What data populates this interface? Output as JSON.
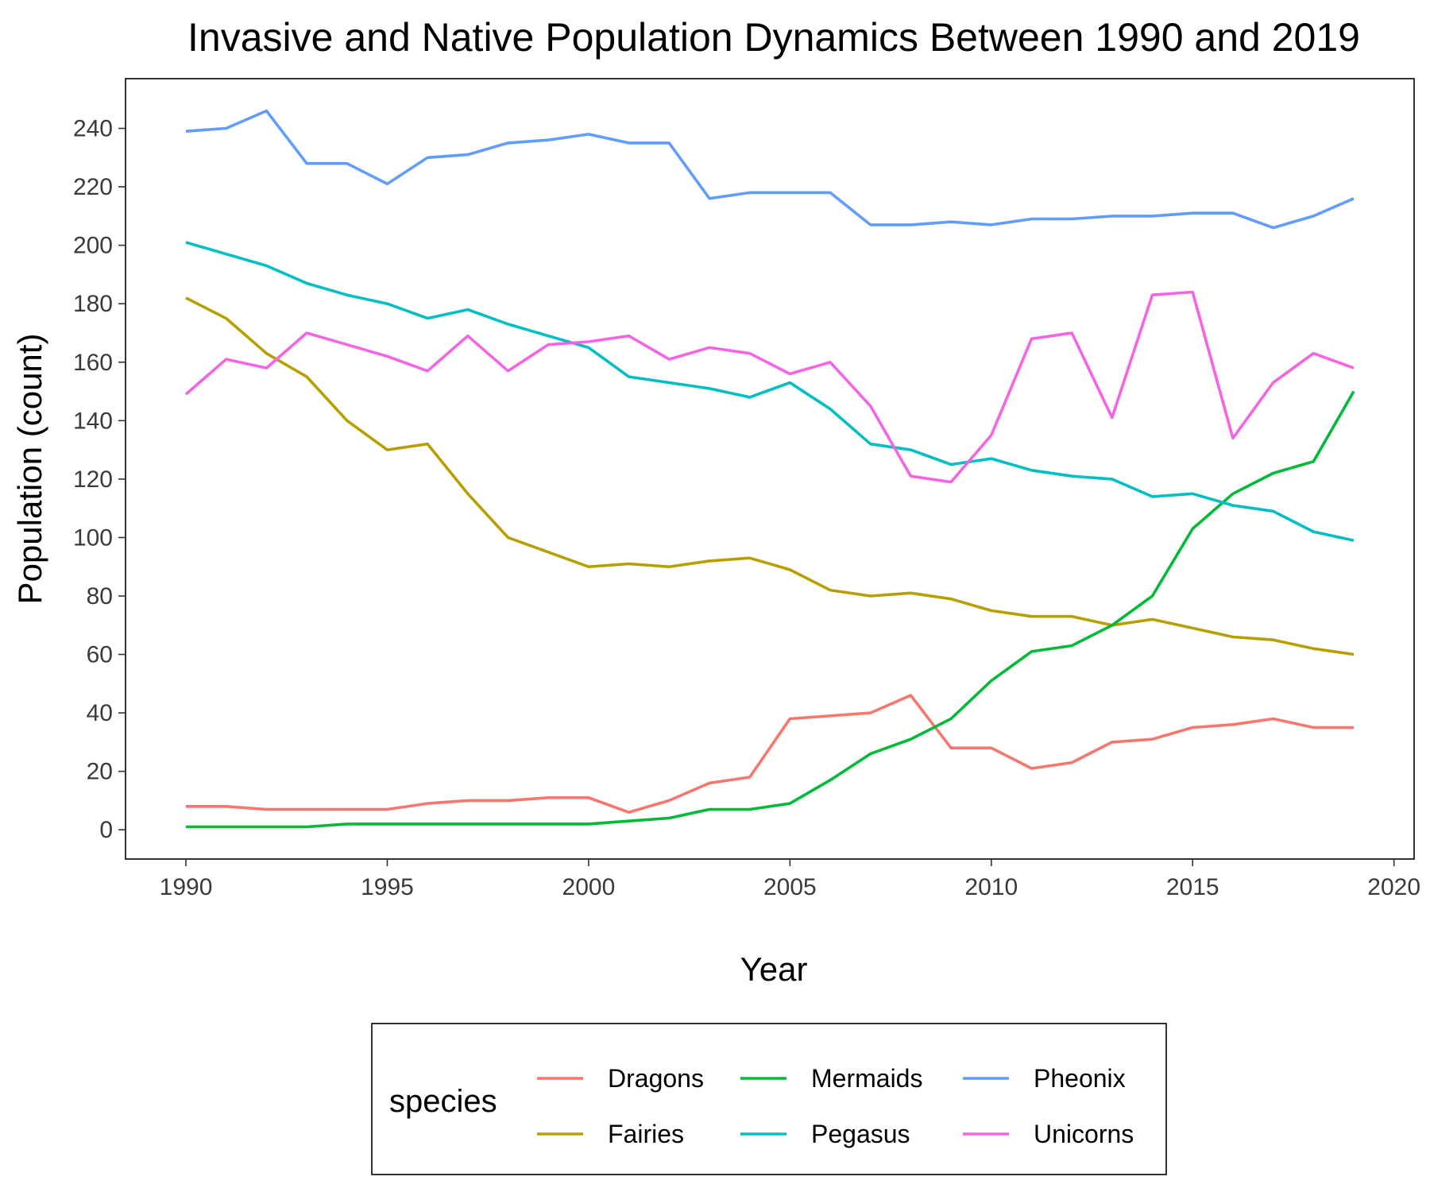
{
  "chart_data": {
    "type": "line",
    "title": "Invasive and Native Population Dynamics Between 1990 and 2019",
    "xlabel": "Year",
    "ylabel": "Population (count)",
    "xlim": [
      1988.5,
      2020.5
    ],
    "ylim": [
      -10,
      257
    ],
    "x_ticks": [
      1990,
      1995,
      2000,
      2005,
      2010,
      2015,
      2020
    ],
    "x_tick_labels": [
      "1990",
      "1995",
      "2000",
      "2005",
      "2010",
      "2015",
      "2020"
    ],
    "y_ticks": [
      0,
      20,
      40,
      60,
      80,
      100,
      120,
      140,
      160,
      180,
      200,
      220,
      240
    ],
    "y_tick_labels": [
      "0",
      "20",
      "40",
      "60",
      "80",
      "100",
      "120",
      "140",
      "160",
      "180",
      "200",
      "220",
      "240"
    ],
    "grid": false,
    "legend_title": "species",
    "legend_position": "bottom",
    "x": [
      1990,
      1991,
      1992,
      1993,
      1994,
      1995,
      1996,
      1997,
      1998,
      1999,
      2000,
      2001,
      2002,
      2003,
      2004,
      2005,
      2006,
      2007,
      2008,
      2009,
      2010,
      2011,
      2012,
      2013,
      2014,
      2015,
      2016,
      2017,
      2018,
      2019
    ],
    "series": [
      {
        "name": "Dragons",
        "color": "#F8766D",
        "values": [
          8,
          8,
          7,
          7,
          7,
          7,
          9,
          10,
          10,
          11,
          11,
          6,
          10,
          16,
          18,
          38,
          39,
          40,
          46,
          28,
          28,
          21,
          23,
          30,
          31,
          35,
          36,
          38,
          35,
          35
        ]
      },
      {
        "name": "Fairies",
        "color": "#B79F00",
        "values": [
          182,
          175,
          163,
          155,
          140,
          130,
          132,
          115,
          100,
          95,
          90,
          91,
          90,
          92,
          93,
          89,
          82,
          80,
          81,
          79,
          75,
          73,
          73,
          70,
          72,
          69,
          66,
          65,
          62,
          60
        ]
      },
      {
        "name": "Mermaids",
        "color": "#00BA38",
        "values": [
          1,
          1,
          1,
          1,
          2,
          2,
          2,
          2,
          2,
          2,
          2,
          3,
          4,
          7,
          7,
          9,
          17,
          26,
          31,
          38,
          51,
          61,
          63,
          70,
          80,
          103,
          115,
          122,
          126,
          150
        ]
      },
      {
        "name": "Pegasus",
        "color": "#00BFC4",
        "values": [
          201,
          197,
          193,
          187,
          183,
          180,
          175,
          178,
          173,
          169,
          165,
          155,
          153,
          151,
          148,
          153,
          144,
          132,
          130,
          125,
          127,
          123,
          121,
          120,
          114,
          115,
          111,
          109,
          102,
          99
        ]
      },
      {
        "name": "Pheonix",
        "color": "#619CFF",
        "values": [
          239,
          240,
          246,
          228,
          228,
          221,
          230,
          231,
          235,
          236,
          238,
          235,
          235,
          216,
          218,
          218,
          218,
          207,
          207,
          208,
          207,
          209,
          209,
          210,
          210,
          211,
          211,
          206,
          210,
          216
        ]
      },
      {
        "name": "Unicorns",
        "color": "#F564E3",
        "values": [
          149,
          161,
          158,
          170,
          166,
          162,
          157,
          169,
          157,
          166,
          167,
          169,
          161,
          165,
          163,
          156,
          160,
          145,
          121,
          119,
          135,
          168,
          170,
          141,
          183,
          184,
          134,
          153,
          163,
          158
        ]
      }
    ]
  }
}
